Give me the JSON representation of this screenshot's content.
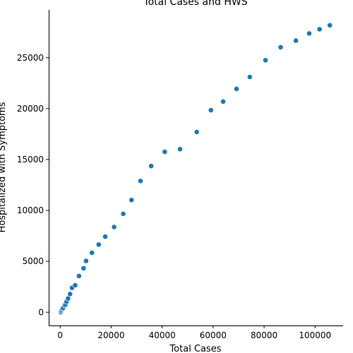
{
  "chart_data": {
    "type": "scatter",
    "title": "Total Cases and HWS",
    "xlabel": "Total Cases",
    "ylabel": "Hospitalized with Symptoms",
    "xlim": [
      -4500,
      111000
    ],
    "ylim": [
      -1300,
      29700
    ],
    "xticks": [
      0,
      20000,
      40000,
      60000,
      80000,
      100000
    ],
    "xtick_labels": [
      "0",
      "20000",
      "40000",
      "60000",
      "80000",
      "100000"
    ],
    "yticks": [
      0,
      5000,
      10000,
      15000,
      20000,
      25000
    ],
    "ytick_labels": [
      "0",
      "5000",
      "10000",
      "15000",
      "20000",
      "25000"
    ],
    "grid": false,
    "marker_color": "#1f77b4",
    "series": [
      {
        "points": [
          [
            229,
            0
          ],
          [
            322,
            114
          ],
          [
            400,
            128
          ],
          [
            650,
            248
          ],
          [
            888,
            345
          ],
          [
            1128,
            401
          ],
          [
            1694,
            639
          ],
          [
            2036,
            742
          ],
          [
            2502,
            1034
          ],
          [
            3089,
            1346
          ],
          [
            3858,
            1790
          ],
          [
            4636,
            2394
          ],
          [
            5883,
            2651
          ],
          [
            7375,
            3557
          ],
          [
            9172,
            4316
          ],
          [
            10149,
            5038
          ],
          [
            12462,
            5838
          ],
          [
            15113,
            6650
          ],
          [
            17660,
            7426
          ],
          [
            21157,
            8372
          ],
          [
            24747,
            9663
          ],
          [
            27980,
            11025
          ],
          [
            31506,
            12894
          ],
          [
            35713,
            14363
          ],
          [
            41035,
            15757
          ],
          [
            47021,
            16020
          ],
          [
            53578,
            17708
          ],
          [
            59138,
            19846
          ],
          [
            63927,
            20692
          ],
          [
            69176,
            21937
          ],
          [
            74386,
            23112
          ],
          [
            80539,
            24753
          ],
          [
            86498,
            26029
          ],
          [
            92472,
            26676
          ],
          [
            97689,
            27386
          ],
          [
            101739,
            27795
          ],
          [
            105792,
            28192
          ]
        ]
      }
    ]
  }
}
